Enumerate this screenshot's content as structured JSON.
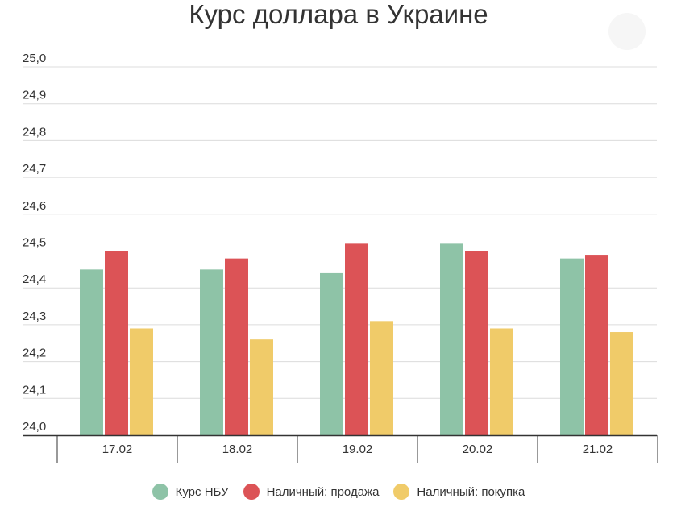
{
  "title": "Курс доллара в Украине",
  "chart_data": {
    "type": "bar",
    "title": "Курс доллара в Украине",
    "categories": [
      "17.02",
      "18.02",
      "19.02",
      "20.02",
      "21.02"
    ],
    "series": [
      {
        "name": "Курс НБУ",
        "color": "#8ec3a7",
        "values": [
          24.45,
          24.45,
          24.44,
          24.52,
          24.48
        ]
      },
      {
        "name": "Наличный: продажа",
        "color": "#dc5356",
        "values": [
          24.5,
          24.48,
          24.52,
          24.5,
          24.49
        ]
      },
      {
        "name": "Наличный: покупка",
        "color": "#f0cb69",
        "values": [
          24.29,
          24.26,
          24.31,
          24.29,
          24.28
        ]
      }
    ],
    "ylim": [
      24.0,
      25.0
    ],
    "yticks": [
      "24,0",
      "24,1",
      "24,2",
      "24,3",
      "24,4",
      "24,5",
      "24,6",
      "24,7",
      "24,8",
      "24,9",
      "25,0"
    ],
    "grid": true,
    "legend": "bottom"
  }
}
